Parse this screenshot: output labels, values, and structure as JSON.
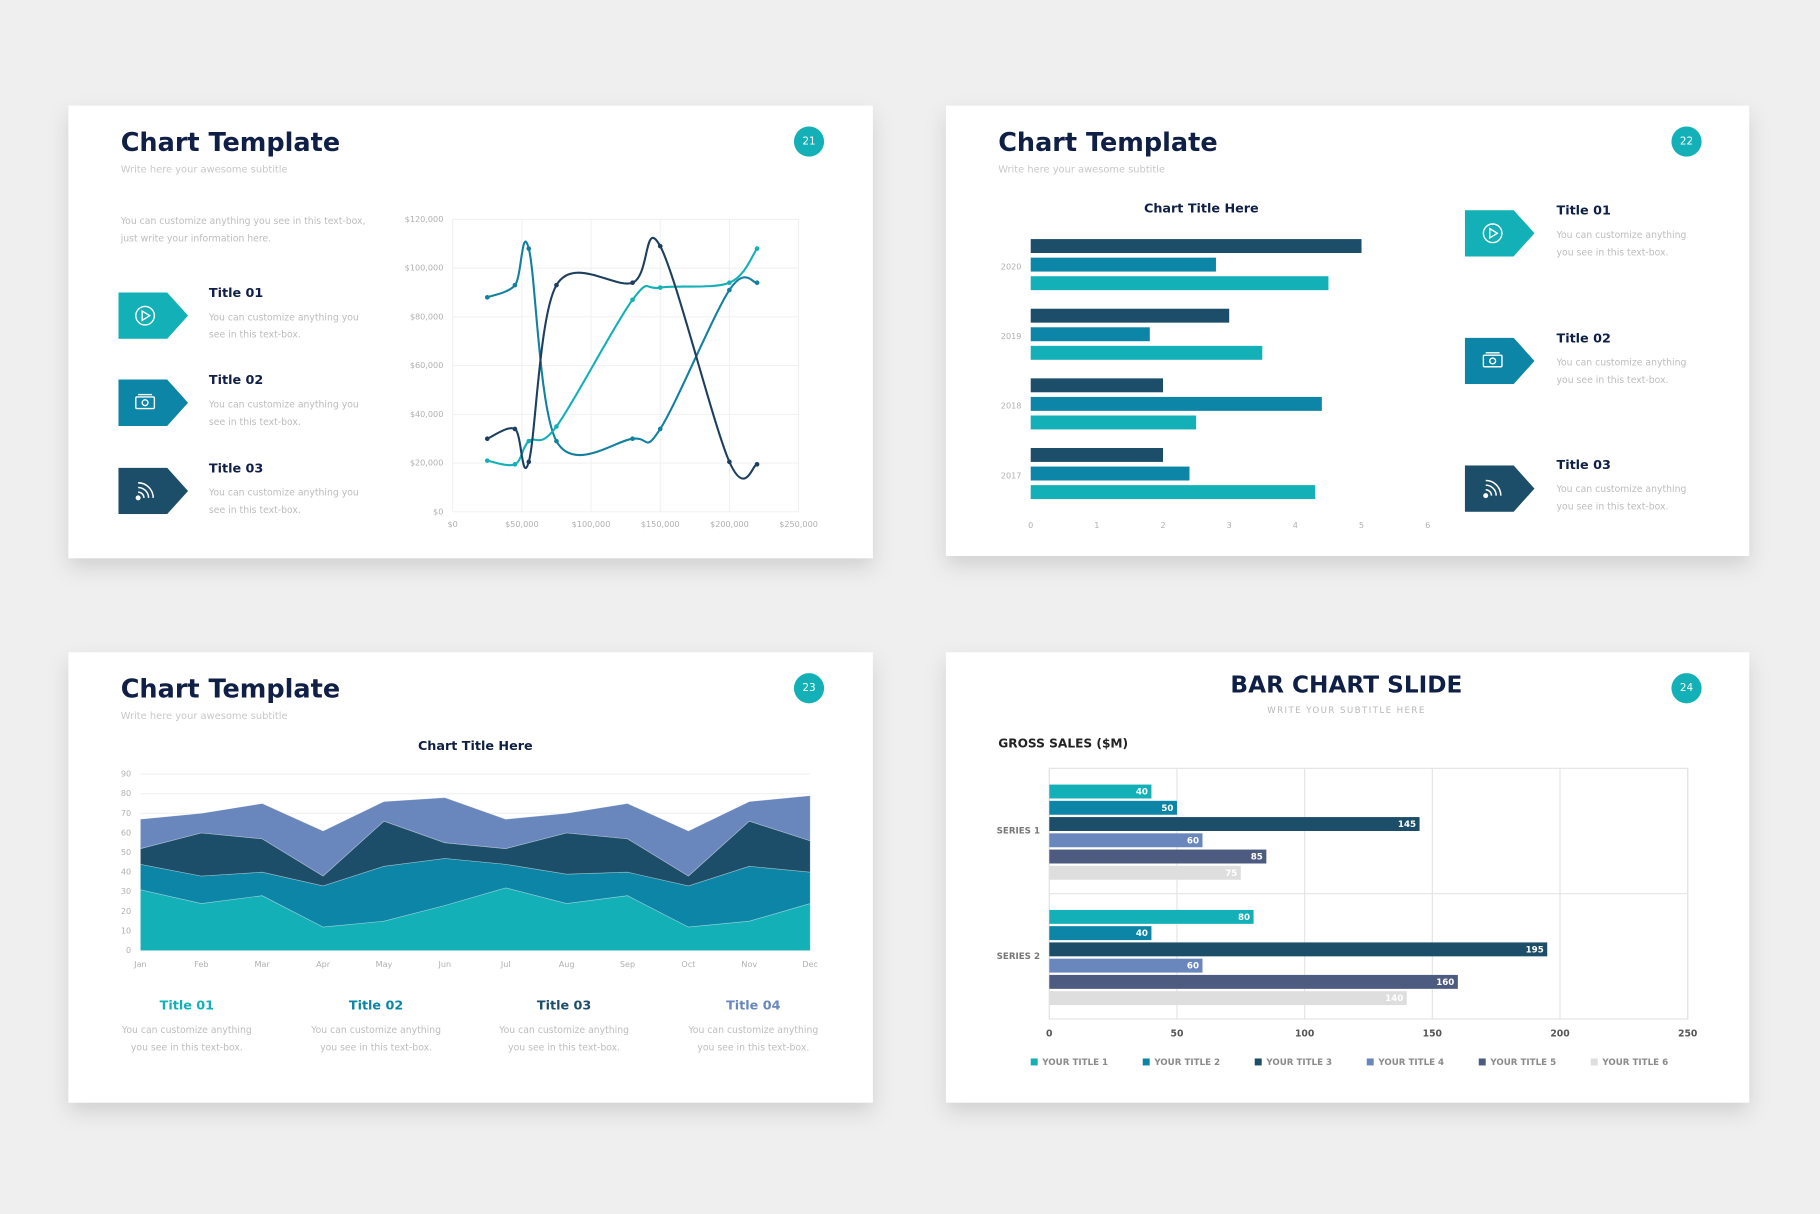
{
  "slides": [
    {
      "title": "Chart Template",
      "subtitle": "Write here your awesome subtitle",
      "page": "21",
      "intro": "You can customize anything you see in this text-box, just write your information here.",
      "items": [
        {
          "title": "Title 01",
          "text": "You can customize anything you see in this text-box."
        },
        {
          "title": "Title 02",
          "text": "You can customize anything you see in this text-box."
        },
        {
          "title": "Title 03",
          "text": "You can customize anything you see in this text-box."
        }
      ]
    },
    {
      "title": "Chart Template",
      "subtitle": "Write here your awesome subtitle",
      "page": "22",
      "items": [
        {
          "title": "Title 01",
          "text": "You can customize anything you see in this text-box."
        },
        {
          "title": "Title 02",
          "text": "You can customize anything you see in this text-box."
        },
        {
          "title": "Title 03",
          "text": "You can customize anything you see in this text-box."
        }
      ]
    },
    {
      "title": "Chart Template",
      "subtitle": "Write here your awesome subtitle",
      "page": "23",
      "items": [
        {
          "title": "Title 01",
          "text": "You can customize anything you see in this text-box."
        },
        {
          "title": "Title 02",
          "text": "You can customize anything you see in this text-box."
        },
        {
          "title": "Title 03",
          "text": "You can customize anything you see in this text-box."
        },
        {
          "title": "Title 04",
          "text": "You can customize anything you see in this text-box."
        }
      ]
    },
    {
      "title": "BAR CHART SLIDE",
      "subtitle": "WRITE YOUR SUBTITLE HERE",
      "page": "24"
    }
  ],
  "chart_data": [
    {
      "type": "line",
      "smooth": true,
      "grid": true,
      "x": [
        25000,
        45000,
        55000,
        75000,
        130000,
        150000,
        200000,
        220000
      ],
      "series": [
        {
          "color": "#12809f",
          "values": [
            88000,
            93000,
            108000,
            29000,
            30000,
            34000,
            91000,
            94000
          ]
        },
        {
          "color": "#13b0b7",
          "values": [
            21000,
            19500,
            29000,
            35000,
            87000,
            92000,
            94000,
            108000
          ]
        },
        {
          "color": "#1c3f5e",
          "values": [
            30000,
            34000,
            20500,
            93000,
            94000,
            109000,
            20500,
            19500
          ]
        }
      ],
      "xlim": [
        0,
        250000
      ],
      "xticks": [
        {
          "value": 0,
          "label": "$0"
        },
        {
          "value": 50000,
          "label": "$50,000"
        },
        {
          "value": 100000,
          "label": "$100,000"
        },
        {
          "value": 150000,
          "label": "$150,000"
        },
        {
          "value": 200000,
          "label": "$200,000"
        },
        {
          "value": 250000,
          "label": "$250,000"
        }
      ],
      "ylim": [
        0,
        120000
      ],
      "yticks": [
        {
          "value": 0,
          "label": "$0"
        },
        {
          "value": 20000,
          "label": "$20,000"
        },
        {
          "value": 40000,
          "label": "$40,000"
        },
        {
          "value": 60000,
          "label": "$60,000"
        },
        {
          "value": 80000,
          "label": "$80,000"
        },
        {
          "value": 100000,
          "label": "$100,000"
        },
        {
          "value": 120000,
          "label": "$120,000"
        }
      ]
    },
    {
      "type": "hbar",
      "title": "Chart Title Here",
      "grid": false,
      "categories": [
        "2020",
        "2019",
        "2018",
        "2017"
      ],
      "series": [
        {
          "color": "#1c4e69",
          "values": [
            5.0,
            3.0,
            2.0,
            2.0
          ]
        },
        {
          "color": "#0c85a6",
          "values": [
            2.8,
            1.8,
            4.4,
            2.4
          ]
        },
        {
          "color": "#13b0b7",
          "values": [
            4.5,
            3.5,
            2.5,
            4.3
          ]
        }
      ],
      "xlim": [
        0,
        6
      ],
      "xticks": [
        0,
        1,
        2,
        3,
        4,
        5,
        6
      ]
    },
    {
      "type": "stacked_area",
      "title": "Chart Title Here",
      "categories": [
        "Jan",
        "Feb",
        "Mar",
        "Apr",
        "May",
        "Jun",
        "Jul",
        "Aug",
        "Sep",
        "Oct",
        "Nov",
        "Dec"
      ],
      "series": [
        {
          "color": "#13b0b7",
          "values": [
            31,
            24,
            28,
            12,
            15,
            23,
            32,
            24,
            28,
            12,
            15,
            24
          ]
        },
        {
          "color": "#0c85a6",
          "values": [
            13,
            14,
            12,
            21,
            28,
            24,
            12,
            15,
            12,
            21,
            28,
            16
          ]
        },
        {
          "color": "#1c4e69",
          "values": [
            8,
            22,
            17,
            5,
            23,
            8,
            8,
            21,
            17,
            5,
            23,
            16
          ]
        },
        {
          "color": "#6987bd",
          "values": [
            15,
            10,
            18,
            23,
            10,
            23,
            15,
            10,
            18,
            23,
            10,
            23
          ]
        }
      ],
      "ylim": [
        0,
        90
      ],
      "yticks": [
        0,
        10,
        20,
        30,
        40,
        50,
        60,
        70,
        80,
        90
      ]
    },
    {
      "type": "hbar",
      "axis_label": "GROSS SALES ($M)",
      "grid": true,
      "data_labels": true,
      "legend": "bottom",
      "categories": [
        "SERIES 1",
        "SERIES 2"
      ],
      "series": [
        {
          "name": "YOUR TITLE 1",
          "color": "#13b0b7",
          "values": [
            40,
            80
          ]
        },
        {
          "name": "YOUR TITLE 2",
          "color": "#0c85a6",
          "values": [
            50,
            40
          ]
        },
        {
          "name": "YOUR TITLE 3",
          "color": "#1c4e69",
          "values": [
            145,
            195
          ]
        },
        {
          "name": "YOUR TITLE 4",
          "color": "#6987bd",
          "values": [
            60,
            60
          ]
        },
        {
          "name": "YOUR TITLE 5",
          "color": "#4d5b80",
          "values": [
            85,
            160
          ]
        },
        {
          "name": "YOUR TITLE 6",
          "color": "#dedede",
          "values": [
            75,
            140
          ]
        }
      ],
      "xlim": [
        0,
        250
      ],
      "xticks": [
        0,
        50,
        100,
        150,
        200,
        250
      ]
    }
  ]
}
